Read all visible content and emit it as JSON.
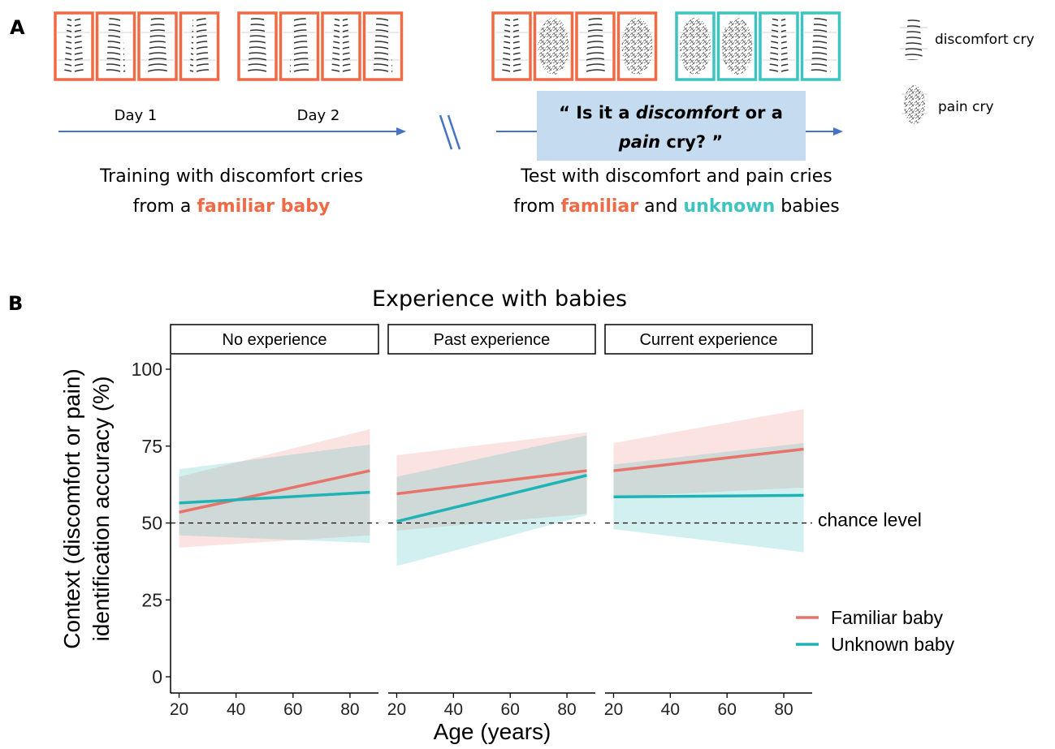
{
  "panel_a": {
    "label": "A",
    "day1": "Day 1",
    "day2": "Day 2",
    "question": {
      "open": "“ Is it a ",
      "discomfort": "discomfort",
      "or_a": " or a",
      "pain": "pain",
      "cry_close": " cry? ”"
    },
    "training": {
      "line1": "Training with discomfort cries",
      "from_a": "from a ",
      "familiar_baby": "familiar baby"
    },
    "test": {
      "line1": "Test with discomfort and pain cries",
      "from": "from ",
      "familiar": "familiar",
      "and": " and ",
      "unknown": "unknown",
      "babies": " babies"
    },
    "legend": {
      "discomfort_cry": "discomfort cry",
      "pain_cry": "pain cry"
    },
    "colors": {
      "familiar": "#ef6a45",
      "unknown": "#3cc4c0",
      "arrow": "#4472c4",
      "question_bg": "#c5dcf0"
    },
    "spectrogram_sequence": {
      "day1": [
        "discomfort",
        "discomfort",
        "discomfort",
        "discomfort"
      ],
      "day2": [
        "discomfort",
        "discomfort",
        "discomfort",
        "discomfort"
      ],
      "test_familiar": [
        "discomfort",
        "pain",
        "discomfort",
        "pain"
      ],
      "test_unknown": [
        "pain",
        "pain",
        "discomfort",
        "discomfort"
      ]
    }
  },
  "panel_b": {
    "label": "B"
  },
  "chart_data": {
    "type": "line",
    "title": "Experience with babies",
    "xlabel": "Age (years)",
    "ylabel": [
      "Context (discomfort or pain)",
      "identification accuracy (%)"
    ],
    "ylim": [
      0,
      100
    ],
    "yticks": [
      0,
      25,
      50,
      75,
      100
    ],
    "xticks": [
      20,
      40,
      60,
      80
    ],
    "xlim": [
      17,
      90
    ],
    "reference_line": {
      "y": 50,
      "label": "chance level",
      "style": "dashed"
    },
    "legend": {
      "position": "right"
    },
    "series_colors": {
      "Familiar baby": "#e8736b",
      "Unknown baby": "#1fb3b5"
    },
    "facets": [
      {
        "name": "No experience",
        "series": [
          {
            "name": "Familiar baby",
            "x": [
              20,
              87
            ],
            "y": [
              53.5,
              67
            ],
            "ci_lower": [
              42,
              46
            ],
            "ci_upper": [
              65,
              80.5
            ]
          },
          {
            "name": "Unknown baby",
            "x": [
              20,
              87
            ],
            "y": [
              56.5,
              60
            ],
            "ci_lower": [
              46,
              43.5
            ],
            "ci_upper": [
              67.5,
              75.5
            ]
          }
        ]
      },
      {
        "name": "Past experience",
        "series": [
          {
            "name": "Familiar baby",
            "x": [
              20,
              87
            ],
            "y": [
              59.5,
              67
            ],
            "ci_lower": [
              47.5,
              53
            ],
            "ci_upper": [
              72,
              79.5
            ]
          },
          {
            "name": "Unknown baby",
            "x": [
              20,
              87
            ],
            "y": [
              50.5,
              65.5
            ],
            "ci_lower": [
              36,
              52.5
            ],
            "ci_upper": [
              65,
              78.5
            ]
          }
        ]
      },
      {
        "name": "Current experience",
        "series": [
          {
            "name": "Familiar baby",
            "x": [
              20,
              87
            ],
            "y": [
              67,
              74
            ],
            "ci_lower": [
              58.5,
              61.5
            ],
            "ci_upper": [
              76,
              87
            ]
          },
          {
            "name": "Unknown baby",
            "x": [
              20,
              87
            ],
            "y": [
              58.5,
              59
            ],
            "ci_lower": [
              48,
              40.5
            ],
            "ci_upper": [
              69,
              76
            ]
          }
        ]
      }
    ]
  }
}
